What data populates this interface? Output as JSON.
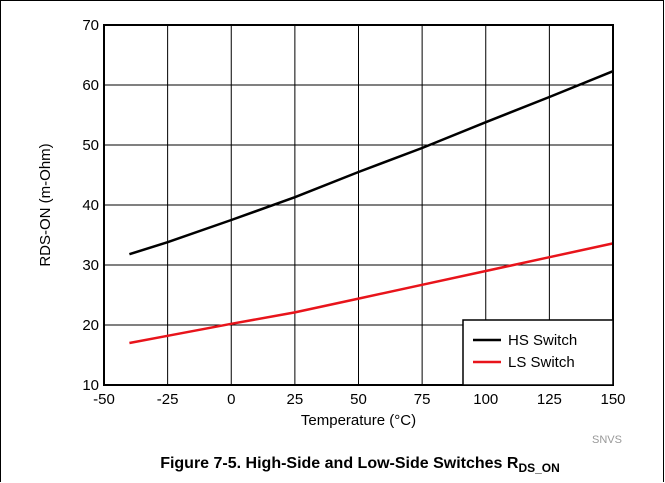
{
  "chart_data": {
    "type": "line",
    "xlabel": "Temperature (°C)",
    "ylabel": "RDS-ON (m-Ohm)",
    "xlim": [
      -50,
      150
    ],
    "ylim": [
      10,
      70
    ],
    "x_ticks": [
      -50,
      -25,
      0,
      25,
      50,
      75,
      100,
      125,
      150
    ],
    "y_ticks": [
      10,
      20,
      30,
      40,
      50,
      60,
      70
    ],
    "grid": true,
    "legend_position": "bottom-right",
    "series": [
      {
        "name": "HS Switch",
        "color": "#000000",
        "x": [
          -40,
          -25,
          0,
          25,
          50,
          75,
          100,
          125,
          150
        ],
        "y": [
          31.8,
          33.8,
          37.5,
          41.3,
          45.5,
          49.5,
          53.8,
          58.0,
          62.3
        ]
      },
      {
        "name": "LS Switch",
        "color": "#e8141b",
        "x": [
          -40,
          -25,
          0,
          25,
          50,
          75,
          100,
          125,
          150
        ],
        "y": [
          17.0,
          18.2,
          20.2,
          22.1,
          24.4,
          26.7,
          29.0,
          31.3,
          33.6
        ]
      }
    ],
    "source_note": "SNVS",
    "caption_main": "Figure 7-5. High-Side and Low-Side Switches R",
    "caption_sub": "DS_ON"
  }
}
